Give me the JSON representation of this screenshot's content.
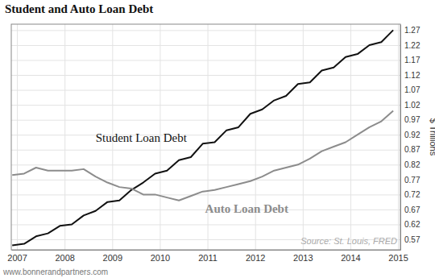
{
  "chart_data": {
    "type": "line",
    "title": "Student and Auto Loan Debt",
    "ylabel": "$ Trillions",
    "annotations": [
      "Source: St. Louis, FRED",
      "www.bonnerandpartners.com"
    ],
    "x": [
      2006.9,
      2007.15,
      2007.4,
      2007.65,
      2007.9,
      2008.15,
      2008.4,
      2008.65,
      2008.9,
      2009.15,
      2009.4,
      2009.65,
      2009.9,
      2010.15,
      2010.4,
      2010.65,
      2010.9,
      2011.15,
      2011.4,
      2011.65,
      2011.9,
      2012.15,
      2012.4,
      2012.65,
      2012.9,
      2013.15,
      2013.4,
      2013.65,
      2013.9,
      2014.15,
      2014.4,
      2014.65,
      2014.9
    ],
    "series": [
      {
        "name": "Student Loan Debt",
        "color": "#111111",
        "values": [
          0.55,
          0.555,
          0.58,
          0.59,
          0.615,
          0.62,
          0.65,
          0.665,
          0.695,
          0.7,
          0.735,
          0.76,
          0.79,
          0.8,
          0.835,
          0.845,
          0.89,
          0.895,
          0.935,
          0.945,
          0.99,
          1.005,
          1.035,
          1.05,
          1.09,
          1.095,
          1.135,
          1.145,
          1.18,
          1.19,
          1.22,
          1.23,
          1.27
        ]
      },
      {
        "name": "Auto Loan Debt",
        "color": "#8c8c8c",
        "values": [
          0.785,
          0.79,
          0.81,
          0.8,
          0.8,
          0.8,
          0.805,
          0.78,
          0.76,
          0.745,
          0.74,
          0.72,
          0.72,
          0.71,
          0.7,
          0.715,
          0.73,
          0.735,
          0.745,
          0.755,
          0.765,
          0.78,
          0.8,
          0.81,
          0.82,
          0.84,
          0.865,
          0.88,
          0.895,
          0.92,
          0.945,
          0.965,
          1.0
        ]
      }
    ],
    "xlim": [
      2006.88,
      2015.05
    ],
    "xticks": [
      2007,
      2008,
      2009,
      2010,
      2011,
      2012,
      2013,
      2014,
      2015
    ],
    "ylim": [
      0.535,
      1.29
    ],
    "yticks": [
      0.57,
      0.62,
      0.67,
      0.72,
      0.77,
      0.82,
      0.87,
      0.92,
      0.97,
      1.02,
      1.07,
      1.12,
      1.17,
      1.22,
      1.27
    ],
    "grid": true
  }
}
